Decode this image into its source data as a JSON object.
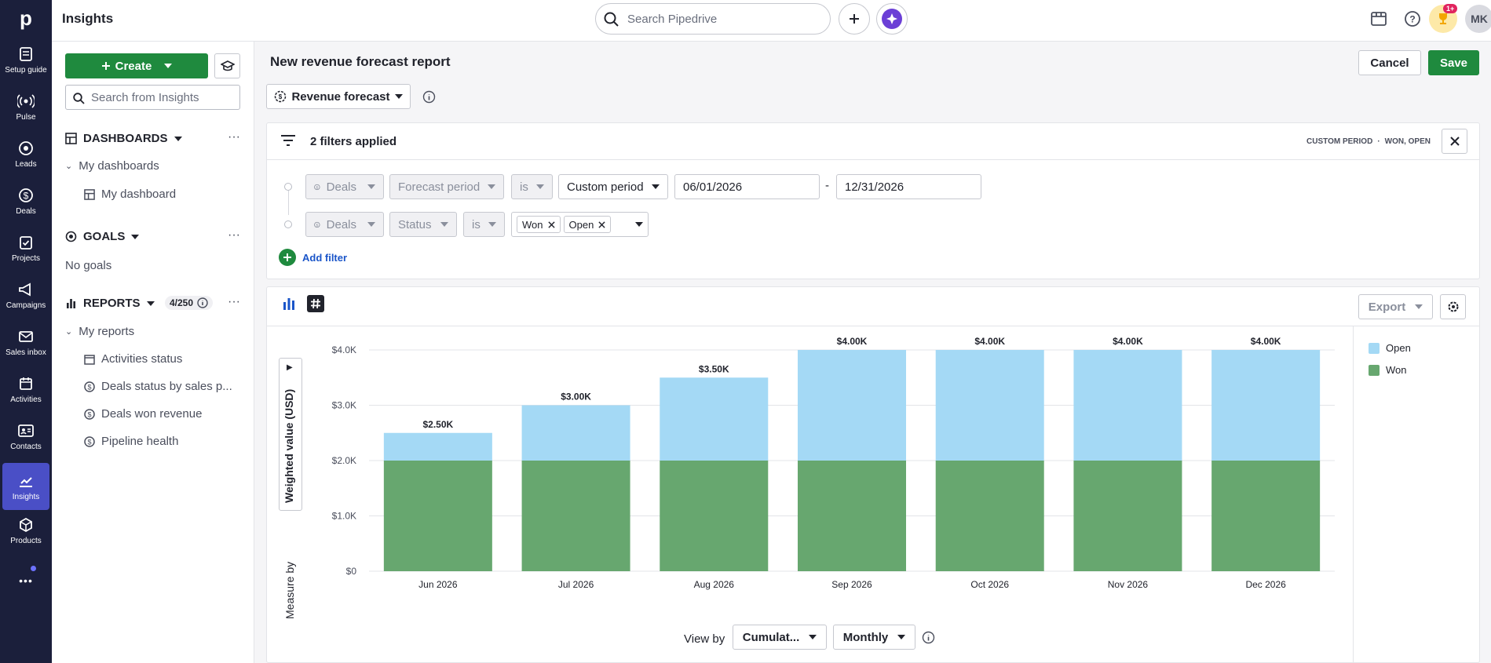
{
  "nav": {
    "logo": "p",
    "items": [
      {
        "label": "Setup guide",
        "icon": "setup-guide-icon"
      },
      {
        "label": "Pulse",
        "icon": "pulse-icon"
      },
      {
        "label": "Leads",
        "icon": "leads-icon"
      },
      {
        "label": "Deals",
        "icon": "deals-icon"
      },
      {
        "label": "Projects",
        "icon": "projects-icon"
      },
      {
        "label": "Campaigns",
        "icon": "campaigns-icon"
      },
      {
        "label": "Sales inbox",
        "icon": "sales-inbox-icon"
      },
      {
        "label": "Activities",
        "icon": "activities-icon"
      },
      {
        "label": "Contacts",
        "icon": "contacts-icon"
      },
      {
        "label": "Insights",
        "icon": "insights-icon"
      },
      {
        "label": "Products",
        "icon": "products-icon"
      }
    ],
    "more": "•••"
  },
  "topbar": {
    "title": "Insights",
    "search_placeholder": "Search Pipedrive",
    "notification_badge": "1+",
    "avatar_initials": "MK"
  },
  "sidebar": {
    "create_label": "Create",
    "search_placeholder": "Search from Insights",
    "dashboards_label": "DASHBOARDS",
    "my_dashboards": "My dashboards",
    "dashboard_item": "My dashboard",
    "goals_label": "GOALS",
    "no_goals": "No goals",
    "reports_label": "REPORTS",
    "reports_count": "4/250",
    "my_reports": "My reports",
    "reports": [
      "Activities status",
      "Deals status by sales p...",
      "Deals won revenue",
      "Pipeline health"
    ]
  },
  "main": {
    "report_title": "New revenue forecast report",
    "cancel_label": "Cancel",
    "save_label": "Save",
    "report_type": "Revenue forecast",
    "filters_applied": "2 filters applied",
    "filter_summary_period": "CUSTOM PERIOD",
    "filter_summary_sep": "·",
    "filter_summary_status": "WON, OPEN",
    "filters": [
      {
        "entity": "Deals",
        "field": "Forecast period",
        "op": "is",
        "value": "Custom period",
        "from": "06/01/2026",
        "dash": "-",
        "to": "12/31/2026"
      },
      {
        "entity": "Deals",
        "field": "Status",
        "op": "is",
        "tags": [
          "Won",
          "Open"
        ]
      }
    ],
    "add_filter_label": "Add filter",
    "export_label": "Export",
    "view_by_label": "View by",
    "view_by_value": "Cumulat...",
    "interval_value": "Monthly"
  },
  "chart_data": {
    "type": "bar",
    "stacked": true,
    "categories": [
      "Jun 2026",
      "Jul 2026",
      "Aug 2026",
      "Sep 2026",
      "Oct 2026",
      "Nov 2026",
      "Dec 2026"
    ],
    "series": [
      {
        "name": "Won",
        "values": [
          2000,
          2000,
          2000,
          2000,
          2000,
          2000,
          2000
        ],
        "color": "#67a76f"
      },
      {
        "name": "Open",
        "values": [
          500,
          1000,
          1500,
          2000,
          2000,
          2000,
          2000
        ],
        "color": "#a4d9f5"
      }
    ],
    "totals_labels": [
      "$2.50K",
      "$3.00K",
      "$3.50K",
      "$4.00K",
      "$4.00K",
      "$4.00K",
      "$4.00K"
    ],
    "yticks": [
      "$0",
      "$1.0K",
      "$2.0K",
      "$3.0K",
      "$4.0K"
    ],
    "ylim": [
      0,
      4000
    ],
    "ylabel": "Weighted value (USD)",
    "measure_label": "Measure by",
    "legend": [
      "Open",
      "Won"
    ],
    "legend_position": "right",
    "grid": true
  }
}
